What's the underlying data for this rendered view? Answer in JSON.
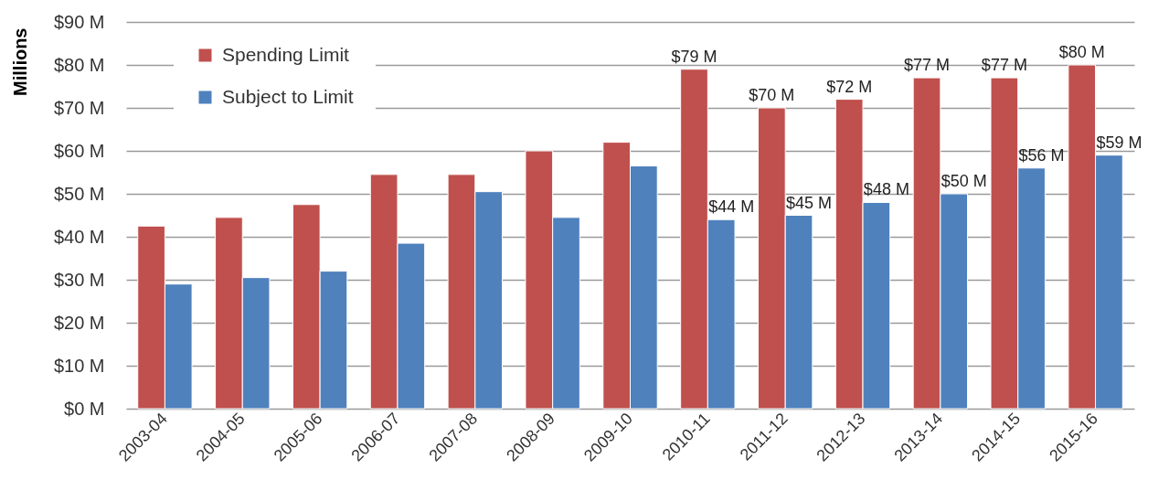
{
  "chart_data": {
    "type": "bar",
    "ylabel": "Millions",
    "categories": [
      "2003-04",
      "2004-05",
      "2005-06",
      "2006-07",
      "2007-08",
      "2008-09",
      "2009-10",
      "2010-11",
      "2011-12",
      "2012-13",
      "2013-14",
      "2014-15",
      "2015-16"
    ],
    "series": [
      {
        "name": "Spending Limit",
        "color": "#c0504d",
        "values": [
          42.5,
          44.5,
          47.5,
          54.5,
          54.5,
          60,
          62,
          79,
          70,
          72,
          77,
          77,
          80
        ],
        "value_labels": [
          null,
          null,
          null,
          null,
          null,
          null,
          null,
          "$79 M",
          "$70 M",
          "$72 M",
          "$77 M",
          "$77 M",
          "$80 M"
        ]
      },
      {
        "name": "Subject to Limit",
        "color": "#4f81bd",
        "values": [
          29,
          30.5,
          32,
          38.5,
          50.5,
          44.5,
          56.5,
          44,
          45,
          48,
          50,
          56,
          59
        ],
        "value_labels": [
          null,
          null,
          null,
          null,
          null,
          null,
          null,
          "$44 M",
          "$45 M",
          "$48 M",
          "$50 M",
          "$56 M",
          "$59 M"
        ]
      }
    ],
    "ylim": [
      0,
      90
    ],
    "yticks": [
      {
        "value": 0,
        "label": "$0 M"
      },
      {
        "value": 10,
        "label": "$10 M"
      },
      {
        "value": 20,
        "label": "$20 M"
      },
      {
        "value": 30,
        "label": "$30 M"
      },
      {
        "value": 40,
        "label": "$40 M"
      },
      {
        "value": 50,
        "label": "$50 M"
      },
      {
        "value": 60,
        "label": "$60 M"
      },
      {
        "value": 70,
        "label": "$70 M"
      },
      {
        "value": 80,
        "label": "$80 M"
      },
      {
        "value": 90,
        "label": "$90 M"
      }
    ],
    "grid": "y",
    "legend": "top left"
  }
}
